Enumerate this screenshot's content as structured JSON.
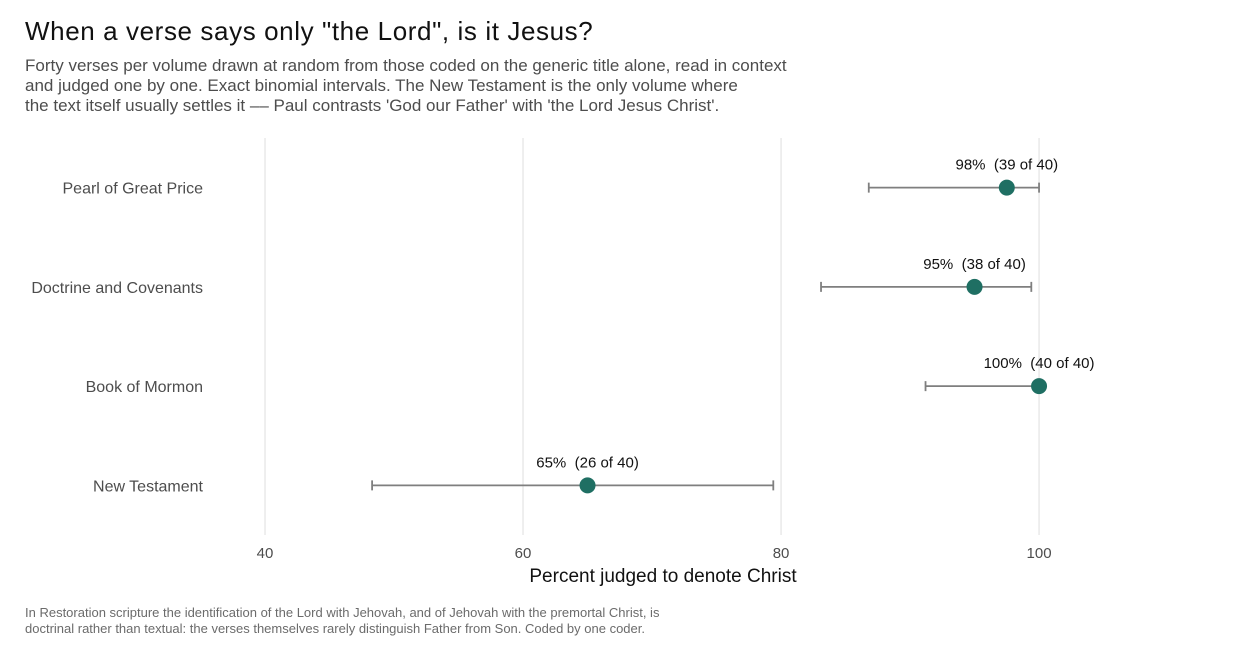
{
  "title": "When a verse says only \"the Lord\", is it Jesus?",
  "subtitle": [
    "Forty verses per volume drawn at random from those coded on the generic title alone, read in context",
    "and judged one by one. Exact binomial intervals. The New Testament is the only volume where",
    "the text itself usually settles it –– Paul contrasts 'God our Father' with 'the Lord Jesus Christ'."
  ],
  "caption": [
    "In Restoration scripture the identification of the Lord with Jehovah, and of Jehovah with the premortal Christ, is",
    "doctrinal rather than textual: the verses themselves rarely distinguish Father from Son. Coded by one coder."
  ],
  "colors": {
    "point": "#1f6f63",
    "errorbar": "#7f7f7f",
    "grid": "#e3e3e3"
  },
  "chart_data": {
    "type": "scatter",
    "subtype": "dot-plot-with-confidence-intervals",
    "title": "When a verse says only \"the Lord\", is it Jesus?",
    "xlabel": "Percent judged to denote Christ",
    "ylabel": "",
    "xlim": [
      36.2,
      105.5
    ],
    "xticks": [
      40,
      60,
      80,
      100
    ],
    "grid": "vertical major gridlines",
    "legend": "none",
    "categories": [
      "Pearl of Great Price",
      "Doctrine and Covenants",
      "Book of Mormon",
      "New Testament"
    ],
    "values": [
      97.5,
      95,
      100,
      65
    ],
    "ci_low": [
      86.8,
      83.1,
      91.2,
      48.3
    ],
    "ci_high": [
      100,
      99.4,
      100,
      79.4
    ],
    "labels": [
      "98%  (39 of 40)",
      "95%  (38 of 40)",
      "100%  (40 of 40)",
      "65%  (26 of 40)"
    ]
  }
}
